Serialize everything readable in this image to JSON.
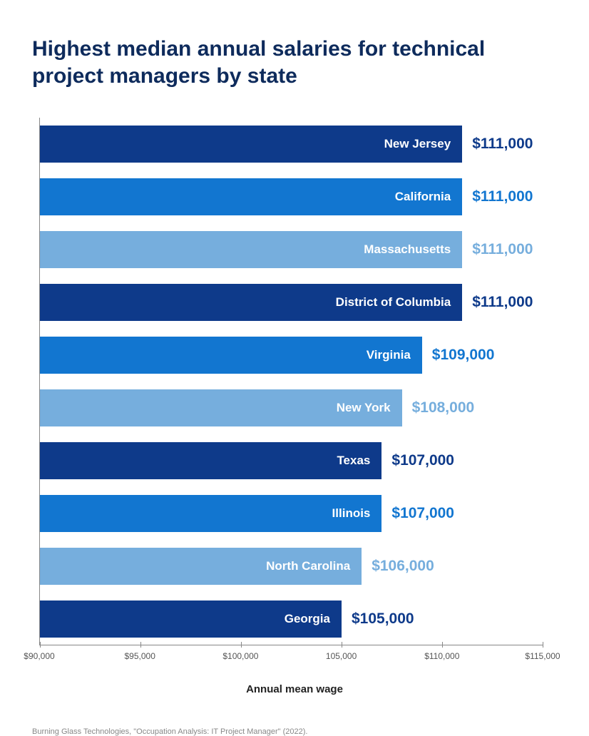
{
  "chart": {
    "title": "Highest median annual salaries for technical project managers by state",
    "title_fontsize": 30,
    "xlabel": "Annual mean wage",
    "xlabel_fontsize": 15,
    "xlim": [
      90000,
      115000
    ],
    "xticks": [
      {
        "value": 90000,
        "label": "$90,000"
      },
      {
        "value": 95000,
        "label": "$95,000"
      },
      {
        "value": 100000,
        "label": "$100,000"
      },
      {
        "value": 105000,
        "label": "105,000"
      },
      {
        "value": 110000,
        "label": "$110,000"
      },
      {
        "value": 115000,
        "label": "$115,000"
      }
    ],
    "xtick_fontsize": 12,
    "bars": [
      {
        "label": "New Jersey",
        "value": 111000,
        "display_value": "$111,000",
        "bar_color": "#0e3a8a",
        "value_color": "#0e3a8a"
      },
      {
        "label": "California",
        "value": 111000,
        "display_value": "$111,000",
        "bar_color": "#1276d0",
        "value_color": "#1276d0"
      },
      {
        "label": "Massachusetts",
        "value": 111000,
        "display_value": "$111,000",
        "bar_color": "#76aedd",
        "value_color": "#76aedd"
      },
      {
        "label": "District of Columbia",
        "value": 111000,
        "display_value": "$111,000",
        "bar_color": "#0e3a8a",
        "value_color": "#0e3a8a"
      },
      {
        "label": "Virginia",
        "value": 109000,
        "display_value": "$109,000",
        "bar_color": "#1276d0",
        "value_color": "#1276d0"
      },
      {
        "label": "New York",
        "value": 108000,
        "display_value": "$108,000",
        "bar_color": "#76aedd",
        "value_color": "#76aedd"
      },
      {
        "label": "Texas",
        "value": 107000,
        "display_value": "$107,000",
        "bar_color": "#0e3a8a",
        "value_color": "#0e3a8a"
      },
      {
        "label": "Illinois",
        "value": 107000,
        "display_value": "$107,000",
        "bar_color": "#1276d0",
        "value_color": "#1276d0"
      },
      {
        "label": "North Carolina",
        "value": 106000,
        "display_value": "$106,000",
        "bar_color": "#76aedd",
        "value_color": "#76aedd"
      },
      {
        "label": "Georgia",
        "value": 105000,
        "display_value": "$105,000",
        "bar_color": "#0e3a8a",
        "value_color": "#0e3a8a"
      }
    ],
    "bar_label_fontsize": 17,
    "bar_value_fontsize": 21,
    "background_color": "#ffffff",
    "axis_color": "#888888"
  },
  "footnote": {
    "text": "Burning Glass Technologies, \"Occupation Analysis: IT Project Manager\" (2022).",
    "fontsize": 11
  }
}
